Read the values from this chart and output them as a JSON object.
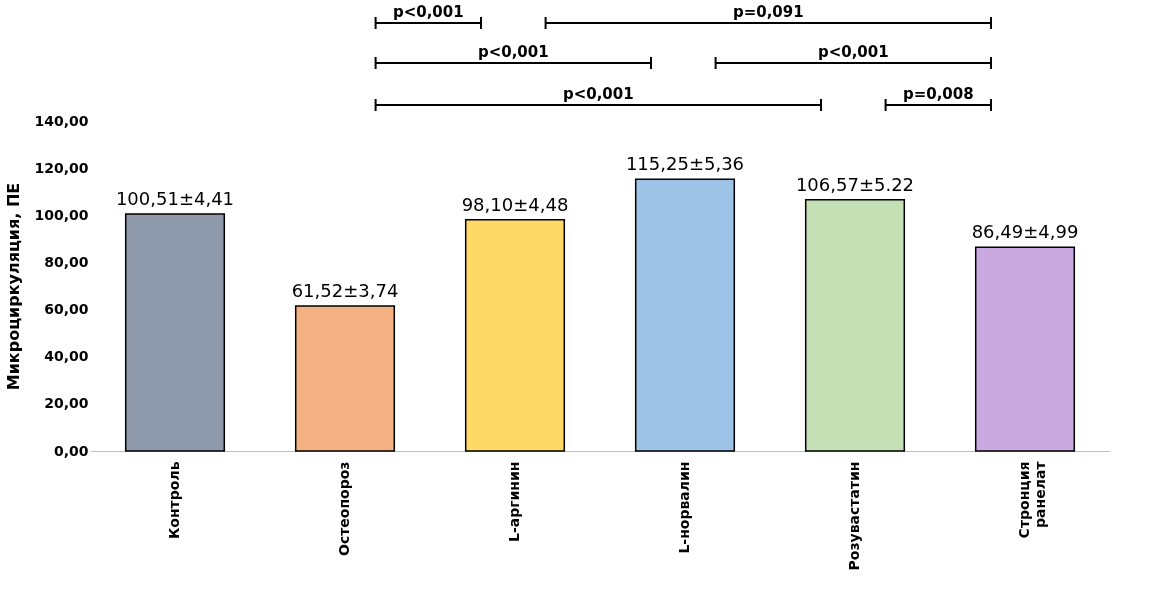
{
  "chart_data": {
    "type": "bar",
    "ylabel": "Микроциркуляция, ПЕ",
    "categories": [
      "Контроль",
      "Остеопороз",
      "L-аргинин",
      "L-норвалин",
      "Розувастатин",
      "Стронция ранелат"
    ],
    "values": [
      100.51,
      61.52,
      98.1,
      115.25,
      106.57,
      86.49
    ],
    "colors": [
      "#8e99ab",
      "#f4b183",
      "#ffd966",
      "#9dc3e6",
      "#c5e0b4",
      "#c9a9e0"
    ],
    "value_labels": [
      "100,51±4,41",
      "61,52±3,74",
      "98,10±4,48",
      "115,25±5,36",
      "106,57±5.22",
      "86,49±4,99"
    ],
    "ylim": [
      0,
      140
    ],
    "yticks": [
      {
        "value": 0,
        "label": "0,00"
      },
      {
        "value": 20,
        "label": "20,00"
      },
      {
        "value": 40,
        "label": "40,00"
      },
      {
        "value": 60,
        "label": "60,00"
      },
      {
        "value": 80,
        "label": "80,00"
      },
      {
        "value": 100,
        "label": "100,00"
      },
      {
        "value": 120,
        "label": "120,00"
      },
      {
        "value": 140,
        "label": "140,00"
      }
    ],
    "grid": false,
    "legend": false,
    "annotations": [
      "p<0,001",
      "p=0,091",
      "p<0,001",
      "p<0,001",
      "p<0,001",
      "p=0,008"
    ]
  }
}
